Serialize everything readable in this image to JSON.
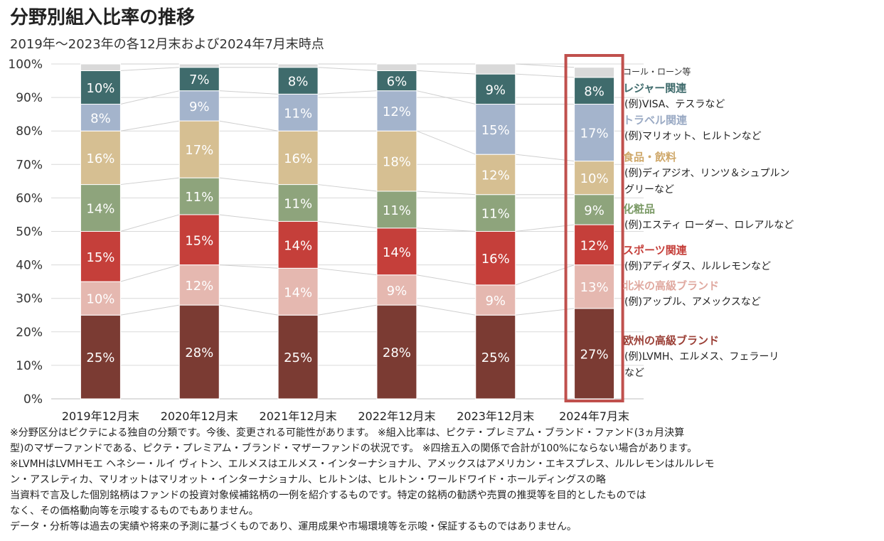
{
  "title": "分野別組入比率の推移",
  "subtitle": "2019年～2023年の各12月末および2024年7月末時点",
  "chart_data": {
    "type": "bar",
    "stacked": true,
    "categories": [
      "2019年12月末",
      "2020年12月末",
      "2021年12月末",
      "2022年12月末",
      "2023年12月末",
      "2024年7月末"
    ],
    "y_ticks": [
      "0%",
      "10%",
      "20%",
      "30%",
      "40%",
      "50%",
      "60%",
      "70%",
      "80%",
      "90%",
      "100%"
    ],
    "ylim": [
      0,
      100
    ],
    "highlighted_category": "2024年7月末",
    "series": [
      {
        "name": "欧州の高級ブランド",
        "color": "#7b3b33",
        "label_color": "#ffffff",
        "values": [
          25,
          28,
          25,
          28,
          25,
          27
        ],
        "labels": [
          "25%",
          "28%",
          "25%",
          "28%",
          "25%",
          "27%"
        ]
      },
      {
        "name": "北米の高級ブランド",
        "color": "#e5b8b0",
        "label_color": "#ffffff",
        "values": [
          10,
          12,
          14,
          9,
          9,
          13
        ],
        "labels": [
          "10%",
          "12%",
          "14%",
          "9%",
          "9%",
          "13%"
        ]
      },
      {
        "name": "スポーツ関連",
        "color": "#c53f3a",
        "label_color": "#ffffff",
        "values": [
          15,
          15,
          14,
          14,
          16,
          12
        ],
        "labels": [
          "15%",
          "15%",
          "14%",
          "14%",
          "16%",
          "12%"
        ]
      },
      {
        "name": "化粧品",
        "color": "#8ea47c",
        "label_color": "#ffffff",
        "values": [
          14,
          11,
          11,
          11,
          11,
          9
        ],
        "labels": [
          "14%",
          "11%",
          "11%",
          "11%",
          "11%",
          "9%"
        ]
      },
      {
        "name": "食品・飲料",
        "color": "#d6bf92",
        "label_color": "#ffffff",
        "values": [
          16,
          17,
          16,
          18,
          12,
          10
        ],
        "labels": [
          "16%",
          "17%",
          "16%",
          "18%",
          "12%",
          "10%"
        ]
      },
      {
        "name": "トラベル関連",
        "color": "#a4b4cc",
        "label_color": "#ffffff",
        "values": [
          8,
          9,
          11,
          12,
          15,
          17
        ],
        "labels": [
          "8%",
          "9%",
          "11%",
          "12%",
          "15%",
          "17%"
        ]
      },
      {
        "name": "レジャー関連",
        "color": "#3f6b6c",
        "label_color": "#ffffff",
        "values": [
          10,
          7,
          8,
          6,
          9,
          8
        ],
        "labels": [
          "10%",
          "7%",
          "8%",
          "6%",
          "9%",
          "8%"
        ]
      },
      {
        "name": "コール・ローン等",
        "color": "#d9d9d9",
        "label_color": "#ffffff",
        "values": [
          2,
          1,
          1,
          2,
          3,
          3
        ],
        "labels": [
          "",
          "",
          "",
          "",
          "",
          ""
        ]
      }
    ],
    "legend": [
      {
        "name": "コール・ローン等",
        "color": "#333333",
        "examples": []
      },
      {
        "name": "レジャー関連",
        "color": "#3f6b6c",
        "examples": [
          "(例)VISA、テスラなど"
        ]
      },
      {
        "name": "トラベル関連",
        "color": "#9aaac4",
        "examples": [
          "(例)マリオット、ヒルトンなど"
        ]
      },
      {
        "name": "食品・飲料",
        "color": "#cfa86a",
        "examples": [
          "(例)ディアジオ、リンツ＆シュプルン",
          "グリーなど"
        ]
      },
      {
        "name": "化粧品",
        "color": "#7b9a66",
        "examples": [
          "(例)エスティ ローダー、ロレアルなど"
        ]
      },
      {
        "name": "スポーツ関連",
        "color": "#c53f3a",
        "examples": [
          "(例)アディダス、ルルレモンなど"
        ]
      },
      {
        "name": "北米の高級ブランド",
        "color": "#e0a9a0",
        "examples": [
          "(例)アップル、アメックスなど"
        ]
      },
      {
        "name": "欧州の高級ブランド",
        "color": "#9b3f36",
        "examples": [
          "(例)LVMH、エルメス、フェラーリ",
          "など"
        ]
      }
    ],
    "legend_placement": "right"
  },
  "notes": [
    "※分野区分はピクテによる独自の分類です。今後、変更される可能性があります。 ※組入比率は、ピクテ・プレミアム・ブランド・ファンド(3ヵ月決算",
    "型)のマザーファンドである、ピクテ・プレミアム・ブランド・マザーファンドの状況です。 ※四捨五入の関係で合計が100%にならない場合があります。",
    "※LVMHはLVMHモエ ヘネシー・ルイ ヴィトン、エルメスはエルメス・インターナショナル、アメックスはアメリカン・エキスプレス、ルルレモンはルルレモ",
    "ン・アスレティカ、マリオットはマリオット・インターナショナル、ヒルトンは、ヒルトン・ワールドワイド・ホールディングスの略",
    "当資料で言及した個別銘柄はファンドの投資対象候補銘柄の一例を紹介するものです。特定の銘柄の勧誘や売買の推奨等を目的としたものでは",
    "なく、その価格動向等を示唆するものでもありません。",
    "データ・分析等は過去の実績や将来の予測に基づくものであり、運用成果や市場環境等を示唆・保証するものではありません。"
  ]
}
